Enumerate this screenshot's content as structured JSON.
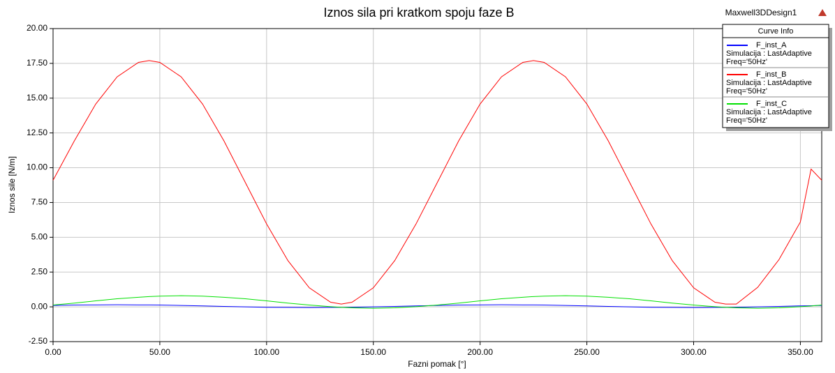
{
  "chart_data": {
    "type": "line",
    "title": "Iznos sila pri kratkom spoju faze B",
    "design": "Maxwell3DDesign1",
    "legend_title": "Curve Info",
    "x_label": "Fazni pomak [°]",
    "y_label": "Iznos sile [N/m]",
    "xlim": [
      0,
      360
    ],
    "ylim": [
      -2.5,
      20
    ],
    "xticks": [
      {
        "value": 0,
        "label": "0.00"
      },
      {
        "value": 50,
        "label": "50.00"
      },
      {
        "value": 100,
        "label": "100.00"
      },
      {
        "value": 150,
        "label": "150.00"
      },
      {
        "value": 200,
        "label": "200.00"
      },
      {
        "value": 250,
        "label": "250.00"
      },
      {
        "value": 300,
        "label": "300.00"
      },
      {
        "value": 350,
        "label": "350.00"
      }
    ],
    "yticks": [
      {
        "value": -2.5,
        "label": "-2.50"
      },
      {
        "value": 0,
        "label": "0.00"
      },
      {
        "value": 2.5,
        "label": "2.50"
      },
      {
        "value": 5,
        "label": "5.00"
      },
      {
        "value": 7.5,
        "label": "7.50"
      },
      {
        "value": 10,
        "label": "10.00"
      },
      {
        "value": 12.5,
        "label": "12.50"
      },
      {
        "value": 15,
        "label": "15.00"
      },
      {
        "value": 17.5,
        "label": "17.50"
      },
      {
        "value": 20,
        "label": "20.00"
      }
    ],
    "grid": true,
    "legend": "top-right",
    "x": [
      0,
      10,
      20,
      30,
      40,
      45,
      50,
      60,
      70,
      80,
      90,
      100,
      110,
      120,
      130,
      135,
      140,
      150,
      160,
      170,
      180,
      190,
      200,
      210,
      220,
      225,
      230,
      240,
      250,
      260,
      270,
      280,
      290,
      300,
      310,
      315,
      320,
      330,
      340,
      350,
      355,
      360
    ],
    "series": [
      {
        "name": "F_inst_A",
        "setup": "Simulacija : LastAdaptive",
        "freq": "Freq='50Hz'",
        "color": "#0000ff",
        "values": [
          0.1,
          0.13,
          0.14,
          0.15,
          0.14,
          0.14,
          0.13,
          0.1,
          0.07,
          0.03,
          0,
          -0.03,
          -0.04,
          -0.05,
          -0.04,
          -0.04,
          -0.03,
          0,
          0.03,
          0.07,
          0.1,
          0.13,
          0.14,
          0.15,
          0.14,
          0.14,
          0.13,
          0.1,
          0.07,
          0.03,
          0,
          -0.03,
          -0.04,
          -0.05,
          -0.04,
          -0.04,
          -0.03,
          0,
          0.03,
          0.07,
          0.08,
          0.1
        ]
      },
      {
        "name": "F_inst_B",
        "setup": "Simulacija : LastAdaptive",
        "freq": "Freq='50Hz'",
        "color": "#ff0000",
        "values": [
          9.1,
          11.94,
          14.58,
          16.53,
          17.57,
          17.7,
          17.57,
          16.53,
          14.58,
          11.94,
          8.95,
          5.96,
          3.32,
          1.37,
          0.33,
          0.2,
          0.33,
          1.37,
          3.32,
          5.96,
          8.95,
          11.94,
          14.58,
          16.53,
          17.57,
          17.7,
          17.57,
          16.53,
          14.58,
          11.94,
          8.95,
          5.96,
          3.32,
          1.37,
          0.33,
          0.2,
          0.2,
          1.4,
          3.4,
          6.1,
          9.9,
          9.1
        ]
      },
      {
        "name": "F_inst_C",
        "setup": "Simulacija : LastAdaptive",
        "freq": "Freq='50Hz'",
        "color": "#00e000",
        "values": [
          0.13,
          0.27,
          0.43,
          0.58,
          0.69,
          0.74,
          0.77,
          0.8,
          0.77,
          0.69,
          0.58,
          0.43,
          0.27,
          0.13,
          0.01,
          -0.04,
          -0.07,
          -0.1,
          -0.07,
          0.01,
          0.13,
          0.27,
          0.43,
          0.58,
          0.69,
          0.74,
          0.77,
          0.8,
          0.77,
          0.69,
          0.58,
          0.43,
          0.27,
          0.13,
          0.01,
          -0.04,
          -0.07,
          -0.1,
          -0.07,
          0.01,
          0.06,
          0.13
        ]
      }
    ]
  }
}
